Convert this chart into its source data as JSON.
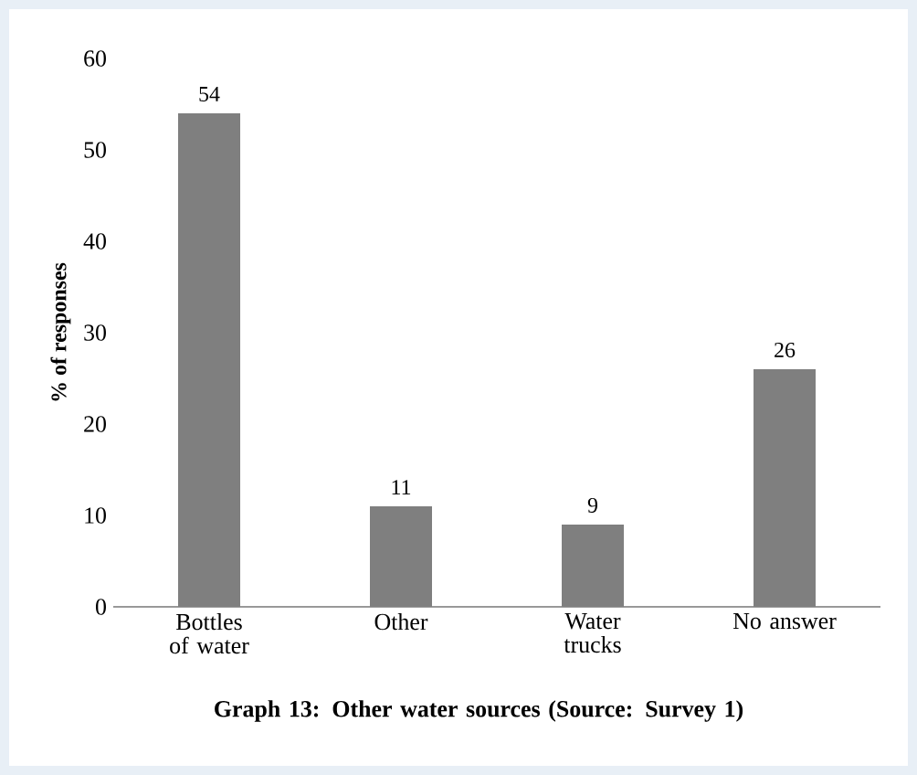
{
  "chart_data": {
    "type": "bar",
    "title": "Graph 13: Other water sources (Source: Survey 1)",
    "ylabel": "% of responses",
    "categories": [
      "Bottles of water",
      "Other",
      "Water trucks",
      "No answer"
    ],
    "values": [
      54,
      11,
      9,
      26
    ],
    "color": "#7f7f7f",
    "data_labels": true,
    "ylim": [
      0,
      60
    ],
    "yticks": [
      0,
      10,
      20,
      30,
      40,
      50,
      60
    ],
    "grid": false
  }
}
